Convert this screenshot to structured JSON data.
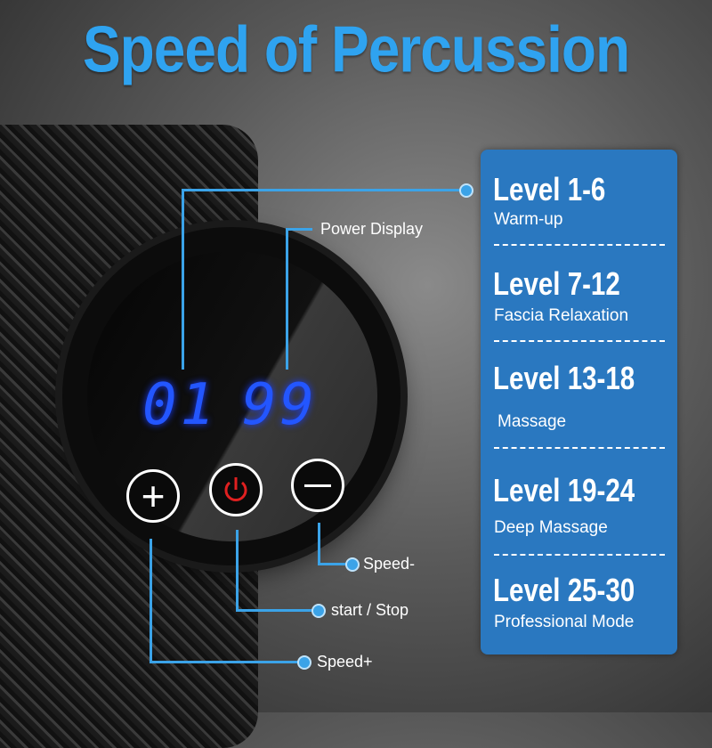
{
  "title": "Speed of Percussion",
  "display": {
    "left": "01",
    "right": "99"
  },
  "buttons": {
    "plus_icon": "plus-icon",
    "power_icon": "power-icon",
    "minus_icon": "minus-icon",
    "power_color": "#e02020"
  },
  "callouts": {
    "power_display": "Power Display",
    "speed_minus": "Speed-",
    "start_stop": "start / Stop",
    "speed_plus": "Speed+"
  },
  "colors": {
    "accent": "#3ba3e8",
    "panel": "#2a78c0",
    "title": "#2fa3f0",
    "digits": "#2356ff"
  },
  "levels": [
    {
      "range": "Level 1-6",
      "mode": "Warm-up"
    },
    {
      "range": "Level 7-12",
      "mode": "Fascia Relaxation"
    },
    {
      "range": "Level 13-18",
      "mode": "Massage"
    },
    {
      "range": "Level 19-24",
      "mode": "Deep Massage"
    },
    {
      "range": "Level 25-30",
      "mode": "Professional Mode"
    }
  ]
}
